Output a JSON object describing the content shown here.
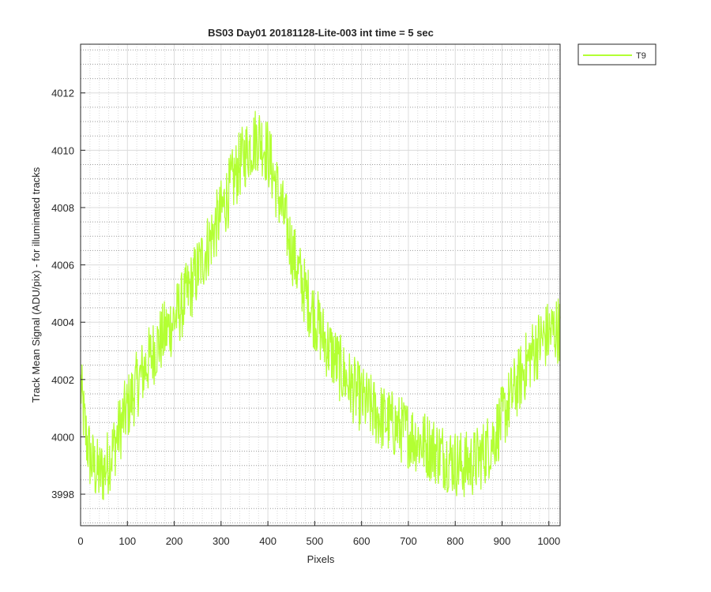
{
  "chart_data": {
    "type": "line",
    "title": "BS03 Day01 20181128-Lite-003 int time = 5 sec",
    "xlabel": "Pixels",
    "ylabel": "Track Mean Signal (ADU/pix) - for illuminated tracks",
    "xlim": [
      0,
      1024
    ],
    "ylim": [
      3996.9,
      4013.7
    ],
    "x_ticks": [
      0,
      100,
      200,
      300,
      400,
      500,
      600,
      700,
      800,
      900,
      1000
    ],
    "y_ticks": [
      3998,
      4000,
      4002,
      4004,
      4006,
      4008,
      4010,
      4012
    ],
    "x_tick_labels": [
      "0",
      "100",
      "200",
      "300",
      "400",
      "500",
      "600",
      "700",
      "800",
      "900",
      "1000"
    ],
    "y_tick_labels": [
      "3998",
      "4000",
      "4002",
      "4004",
      "4006",
      "4008",
      "4010",
      "4012"
    ],
    "grid": "major-and-minor",
    "legend_position": "outside-top-right",
    "series": [
      {
        "name": "T9",
        "color": "#b3ff33",
        "noise_amplitude": 1.2,
        "x": [
          0,
          10,
          20,
          30,
          40,
          50,
          60,
          70,
          80,
          90,
          100,
          120,
          140,
          160,
          180,
          200,
          220,
          240,
          260,
          280,
          300,
          320,
          340,
          360,
          380,
          400,
          420,
          440,
          460,
          480,
          500,
          520,
          540,
          560,
          580,
          600,
          620,
          640,
          660,
          680,
          700,
          720,
          740,
          760,
          780,
          800,
          820,
          840,
          860,
          880,
          900,
          920,
          940,
          960,
          980,
          1000,
          1010,
          1024
        ],
        "y": [
          4001.8,
          4000.2,
          3999.3,
          3998.9,
          3998.7,
          3998.8,
          3999.2,
          3999.6,
          4000.1,
          4000.6,
          4001.0,
          4001.8,
          4002.5,
          4003.1,
          4003.6,
          4004.1,
          4004.7,
          4005.4,
          4006.2,
          4007.0,
          4007.8,
          4008.7,
          4009.5,
          4010.1,
          4010.5,
          4009.9,
          4008.6,
          4007.3,
          4006.0,
          4005.0,
          4004.2,
          4003.4,
          4002.8,
          4002.2,
          4001.7,
          4001.3,
          4001.0,
          4000.7,
          4000.5,
          4000.3,
          4000.1,
          3999.9,
          3999.7,
          3999.5,
          3999.3,
          3999.1,
          3999.0,
          3999.1,
          3999.4,
          3999.9,
          4000.6,
          4001.4,
          4002.1,
          4002.8,
          4003.3,
          4003.6,
          4003.7,
          4003.8
        ]
      }
    ]
  }
}
